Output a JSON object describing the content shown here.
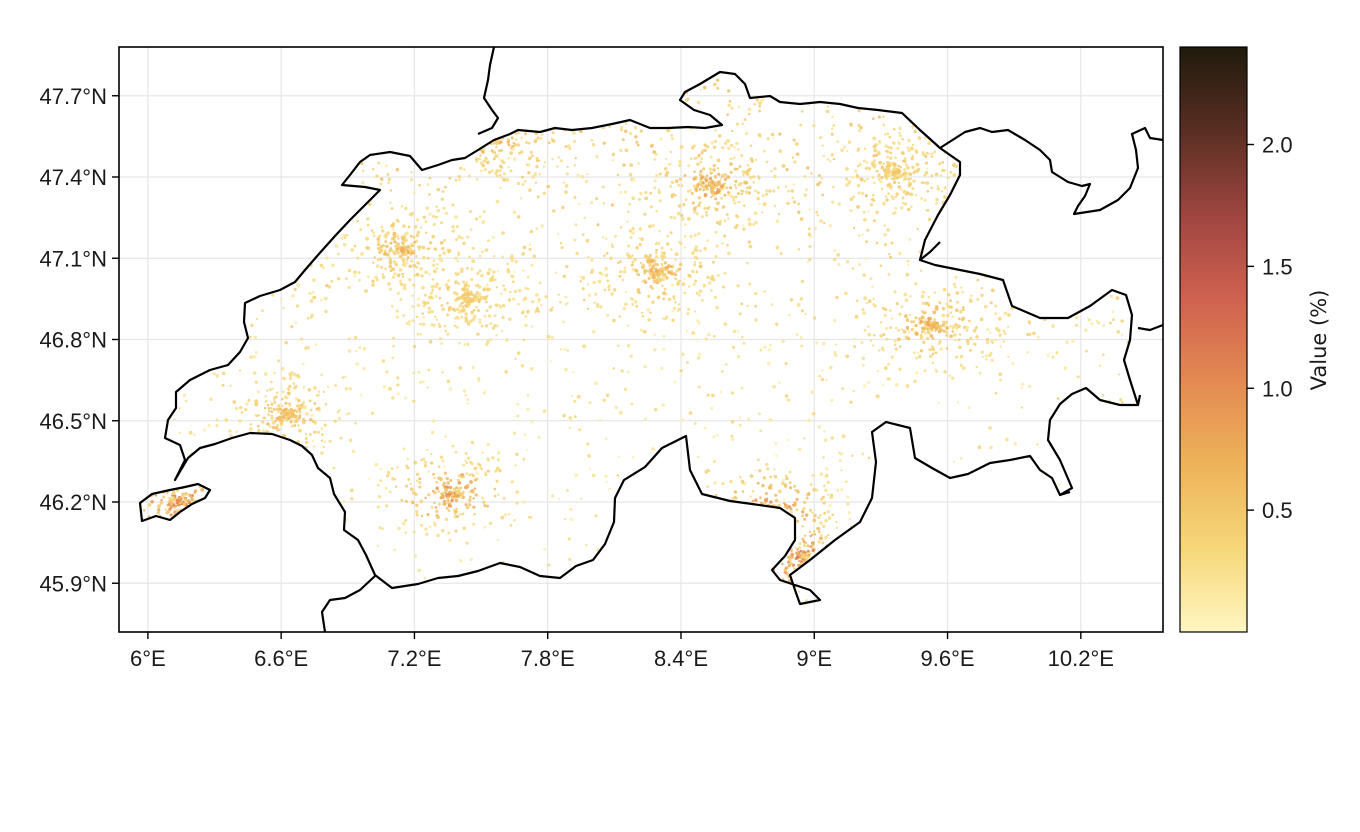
{
  "map": {
    "x_ticks": [
      "6°E",
      "6.6°E",
      "7.2°E",
      "7.8°E",
      "8.4°E",
      "9°E",
      "9.6°E",
      "10.2°E"
    ],
    "y_ticks": [
      "47.7°N",
      "47.4°N",
      "47.1°N",
      "46.8°N",
      "46.5°N",
      "46.2°N",
      "45.9°N"
    ],
    "x_tick_values": [
      6.0,
      6.6,
      7.2,
      7.8,
      8.4,
      9.0,
      9.6,
      10.2
    ],
    "y_tick_values": [
      47.7,
      47.4,
      47.1,
      46.8,
      46.5,
      46.2,
      45.9
    ],
    "lon_range": [
      5.87,
      10.57
    ],
    "lat_range": [
      45.72,
      47.88
    ],
    "grid": true
  },
  "colorbar": {
    "label": "Value (%)",
    "ticks": [
      "0.5",
      "1.0",
      "1.5",
      "2.0"
    ],
    "tick_values": [
      0.5,
      1.0,
      1.5,
      2.0
    ],
    "range": [
      0.0,
      2.4
    ],
    "colors": [
      "#fff6c2",
      "#f6d77a",
      "#eeb35a",
      "#e38a52",
      "#cf6150",
      "#9e4540",
      "#5a2e22",
      "#1f1a0c"
    ]
  },
  "chart_data": {
    "type": "scatter",
    "title": "",
    "xlabel": "",
    "ylabel": "",
    "xlim": [
      5.87,
      10.57
    ],
    "ylim": [
      45.72,
      47.88
    ],
    "hotspots": [
      {
        "lon": 6.14,
        "lat": 46.2,
        "value": 1.3
      },
      {
        "lon": 7.44,
        "lat": 46.95,
        "value": 0.6
      },
      {
        "lon": 7.58,
        "lat": 47.55,
        "value": 0.9
      },
      {
        "lon": 8.54,
        "lat": 47.37,
        "value": 1.0
      },
      {
        "lon": 8.3,
        "lat": 47.05,
        "value": 0.8
      },
      {
        "lon": 7.36,
        "lat": 46.23,
        "value": 1.2
      },
      {
        "lon": 8.8,
        "lat": 46.17,
        "value": 1.3
      },
      {
        "lon": 8.95,
        "lat": 46.0,
        "value": 1.4
      },
      {
        "lon": 9.53,
        "lat": 46.85,
        "value": 0.9
      },
      {
        "lon": 6.63,
        "lat": 46.52,
        "value": 0.8
      },
      {
        "lon": 7.15,
        "lat": 47.13,
        "value": 0.8
      },
      {
        "lon": 9.37,
        "lat": 47.42,
        "value": 0.6
      }
    ]
  }
}
